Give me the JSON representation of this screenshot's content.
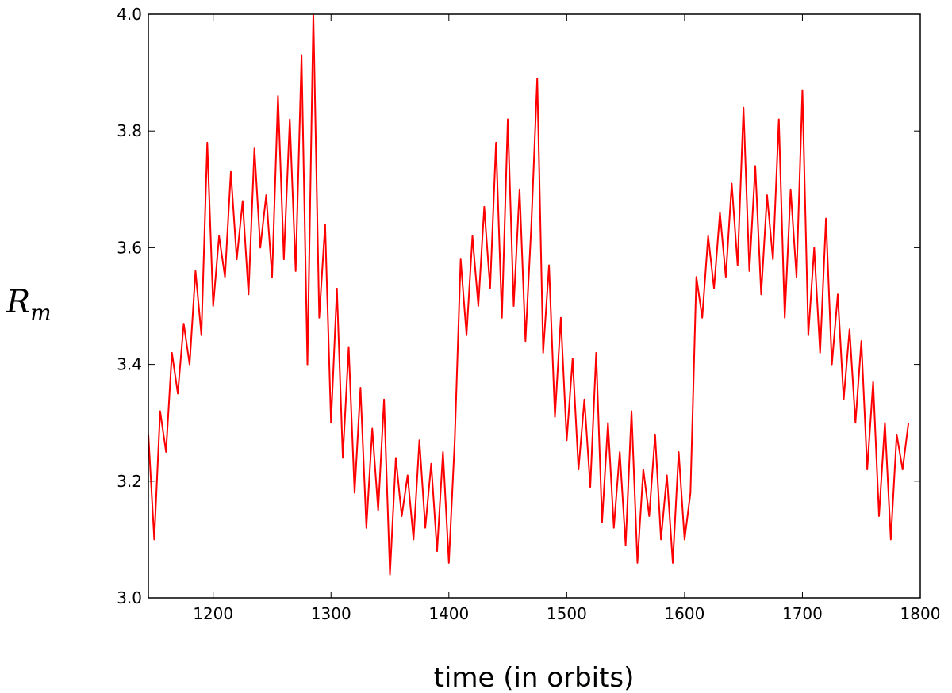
{
  "chart_data": {
    "type": "line",
    "xlabel": "time (in orbits)",
    "ylabel": "R",
    "ylabel_subscript": "m",
    "xlim": [
      1145,
      1800
    ],
    "ylim": [
      3.0,
      4.0
    ],
    "xticks": [
      1200,
      1300,
      1400,
      1500,
      1600,
      1700,
      1800
    ],
    "yticks": [
      {
        "value": 3.0,
        "label": "3.0"
      },
      3.2,
      3.4,
      3.6,
      3.8,
      {
        "value": 4.0,
        "label": "4.0"
      }
    ],
    "grid": false,
    "x": [
      1145,
      1150,
      1155,
      1160,
      1165,
      1170,
      1175,
      1180,
      1185,
      1190,
      1195,
      1200,
      1205,
      1210,
      1215,
      1220,
      1225,
      1230,
      1235,
      1240,
      1245,
      1250,
      1255,
      1260,
      1265,
      1270,
      1275,
      1280,
      1285,
      1290,
      1295,
      1300,
      1305,
      1310,
      1315,
      1320,
      1325,
      1330,
      1335,
      1340,
      1345,
      1350,
      1355,
      1360,
      1365,
      1370,
      1375,
      1380,
      1385,
      1390,
      1395,
      1400,
      1405,
      1410,
      1415,
      1420,
      1425,
      1430,
      1435,
      1440,
      1445,
      1450,
      1455,
      1460,
      1465,
      1470,
      1475,
      1480,
      1485,
      1490,
      1495,
      1500,
      1505,
      1510,
      1515,
      1520,
      1525,
      1530,
      1535,
      1540,
      1545,
      1550,
      1555,
      1560,
      1565,
      1570,
      1575,
      1580,
      1585,
      1590,
      1595,
      1600,
      1605,
      1610,
      1615,
      1620,
      1625,
      1630,
      1635,
      1640,
      1645,
      1650,
      1655,
      1660,
      1665,
      1670,
      1675,
      1680,
      1685,
      1690,
      1695,
      1700,
      1705,
      1710,
      1715,
      1720,
      1725,
      1730,
      1735,
      1740,
      1745,
      1750,
      1755,
      1760,
      1765,
      1770,
      1775,
      1780,
      1785,
      1790
    ],
    "series": [
      {
        "color": "#ff0000",
        "values": [
          3.28,
          3.1,
          3.32,
          3.25,
          3.42,
          3.35,
          3.47,
          3.4,
          3.56,
          3.45,
          3.78,
          3.5,
          3.62,
          3.55,
          3.73,
          3.58,
          3.68,
          3.52,
          3.77,
          3.6,
          3.69,
          3.55,
          3.86,
          3.58,
          3.82,
          3.56,
          3.93,
          3.4,
          4.0,
          3.48,
          3.64,
          3.3,
          3.53,
          3.24,
          3.43,
          3.18,
          3.36,
          3.12,
          3.29,
          3.15,
          3.34,
          3.04,
          3.24,
          3.14,
          3.21,
          3.1,
          3.27,
          3.12,
          3.23,
          3.08,
          3.25,
          3.06,
          3.27,
          3.58,
          3.45,
          3.62,
          3.5,
          3.67,
          3.53,
          3.78,
          3.48,
          3.82,
          3.5,
          3.7,
          3.44,
          3.64,
          3.89,
          3.42,
          3.57,
          3.31,
          3.48,
          3.27,
          3.41,
          3.22,
          3.34,
          3.19,
          3.42,
          3.13,
          3.3,
          3.12,
          3.25,
          3.09,
          3.32,
          3.06,
          3.22,
          3.14,
          3.28,
          3.1,
          3.21,
          3.06,
          3.25,
          3.1,
          3.18,
          3.55,
          3.48,
          3.62,
          3.53,
          3.66,
          3.55,
          3.71,
          3.57,
          3.84,
          3.56,
          3.74,
          3.52,
          3.69,
          3.58,
          3.82,
          3.48,
          3.7,
          3.55,
          3.87,
          3.45,
          3.6,
          3.42,
          3.65,
          3.4,
          3.52,
          3.34,
          3.46,
          3.3,
          3.44,
          3.22,
          3.37,
          3.14,
          3.3,
          3.1,
          3.28,
          3.22,
          3.3
        ]
      }
    ]
  }
}
